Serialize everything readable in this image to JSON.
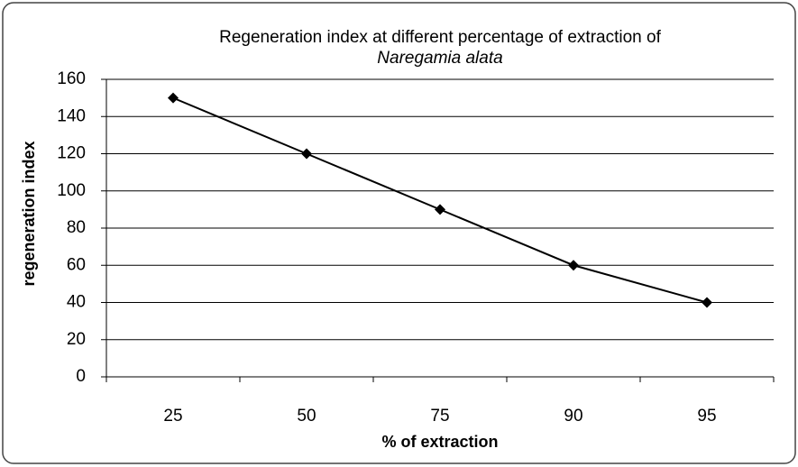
{
  "chart_data": {
    "type": "line",
    "title": "Regeneration index at different percentage of extraction of",
    "subtitle": "Naregamia alata",
    "x_label": "% of extraction",
    "y_label": "regeneration index",
    "categories": [
      "25",
      "50",
      "75",
      "90",
      "95"
    ],
    "values": [
      150,
      120,
      90,
      60,
      40
    ],
    "color": "#000000",
    "ylim": [
      0,
      160
    ],
    "yticks": [
      0,
      20,
      40,
      60,
      80,
      100,
      120,
      140,
      160
    ],
    "grid": true
  }
}
